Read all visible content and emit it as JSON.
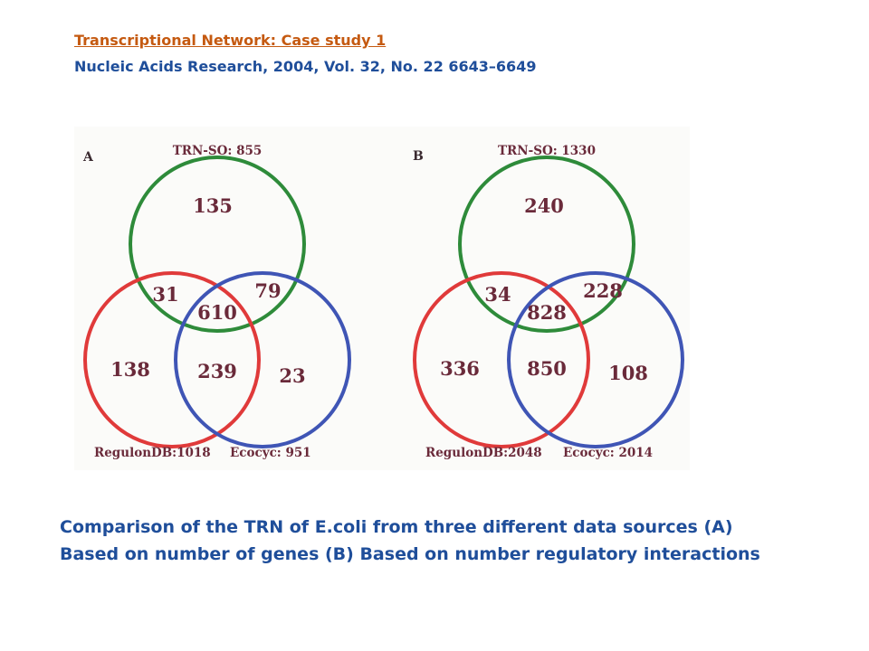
{
  "header": {
    "link_text": "Transcriptional Network: Case study 1",
    "citation": "Nucleic Acids Research, 2004, Vol. 32, No. 22 6643–6649"
  },
  "panels": [
    {
      "letter": "A",
      "sets": {
        "top": "TRN-SO: 855",
        "left": "RegulonDB:1018",
        "right": "Ecocyc: 951"
      },
      "regions": {
        "top_only": "135",
        "top_left": "31",
        "top_right": "79",
        "center": "610",
        "left_only": "138",
        "left_right": "239",
        "right_only": "23"
      }
    },
    {
      "letter": "B",
      "sets": {
        "top": "TRN-SO: 1330",
        "left": "RegulonDB:2048",
        "right": "Ecocyc: 2014"
      },
      "regions": {
        "top_only": "240",
        "top_left": "34",
        "top_right": "228",
        "center": "828",
        "left_only": "336",
        "left_right": "850",
        "right_only": "108"
      }
    }
  ],
  "colors": {
    "top": "#2e8b3a",
    "left": "#e03a3a",
    "right": "#3f55b5",
    "link": "#c55a11",
    "text": "#1f4e9a"
  },
  "caption": {
    "line1": "Comparison of the TRN of E.coli from three different data sources (A)",
    "line2": "Based on number of genes (B) Based on number regulatory interactions"
  }
}
